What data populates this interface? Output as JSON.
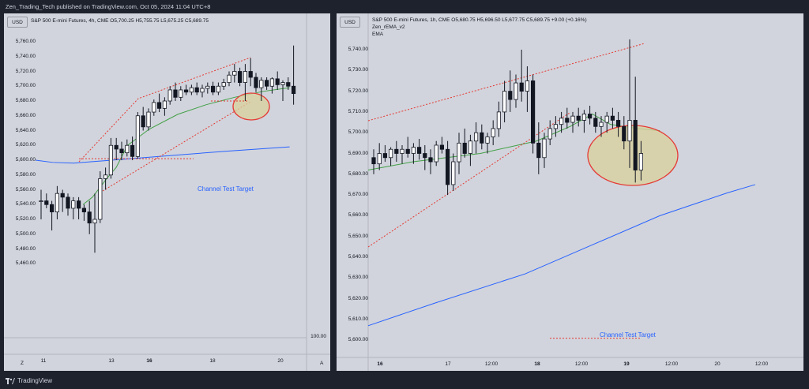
{
  "header": {
    "text": "Zen_Trading_Tech published on TradingView.com, Oct 05, 2024 11:04 UTC+8"
  },
  "footer": {
    "brand": "TradingView",
    "logo_icon": "tradingview-logo-icon"
  },
  "colors": {
    "bull": "#ffffff",
    "bear": "#131722",
    "ema_blue": "#2962ff",
    "ema_green": "#43a047",
    "ema_orange": "#ff9800",
    "trend": "#e53935",
    "highlight_fill": "#d9d29c",
    "highlight_stroke": "#e53935"
  },
  "panels": [
    {
      "currency": "USD",
      "legend": [
        "S&P 500 E-mini Futures, 4h, CME  O5,700.25  H5,755.75  L5,675.25  C5,689.75"
      ],
      "y_ticks": [
        "5,760.00",
        "5,740.00",
        "5,720.00",
        "5,700.00",
        "5,680.00",
        "5,660.00",
        "5,640.00",
        "5,620.00",
        "5,600.00",
        "5,580.00",
        "5,560.00",
        "5,540.00",
        "5,520.00",
        "5,500.00",
        "5,480.00",
        "5,460.00"
      ],
      "volume_tick": "100.00",
      "x_ticks": [
        "11",
        "13",
        "16",
        "18",
        "20"
      ],
      "x_bold": [
        "16"
      ],
      "corner_left": "Z",
      "corner_right": "A",
      "annotation": "Channel Test Target"
    },
    {
      "currency": "USD",
      "legend": [
        "S&P 500 E-mini Futures, 1h, CME  O5,680.75  H5,696.50  L5,677.75  C5,689.75  +9.00 (+0.16%)",
        "Zen_rEMA_v2",
        "EMA"
      ],
      "y_ticks": [
        "5,740.00",
        "5,730.00",
        "5,720.00",
        "5,710.00",
        "5,700.00",
        "5,690.00",
        "5,680.00",
        "5,670.00",
        "5,660.00",
        "5,650.00",
        "5,640.00",
        "5,630.00",
        "5,620.00",
        "5,610.00",
        "5,600.00"
      ],
      "x_ticks": [
        "16",
        "17",
        "12:00",
        "18",
        "12:00",
        "19",
        "12:00",
        "20",
        "12:00"
      ],
      "x_bold": [
        "16",
        "18",
        "19"
      ],
      "annotation": "Channel Test Target"
    }
  ],
  "chart_data": [
    {
      "type": "candlestick",
      "title": "S&P 500 E-mini Futures, 4h, CME",
      "ylim": [
        5450,
        5770
      ],
      "ohlc": [
        [
          5545,
          5560,
          5520,
          5545
        ],
        [
          5545,
          5555,
          5535,
          5540
        ],
        [
          5540,
          5545,
          5505,
          5530
        ],
        [
          5530,
          5565,
          5520,
          5555
        ],
        [
          5555,
          5560,
          5530,
          5550
        ],
        [
          5550,
          5555,
          5525,
          5535
        ],
        [
          5535,
          5550,
          5520,
          5545
        ],
        [
          5545,
          5550,
          5520,
          5535
        ],
        [
          5535,
          5540,
          5518,
          5530
        ],
        [
          5530,
          5545,
          5500,
          5515
        ],
        [
          5515,
          5555,
          5475,
          5520
        ],
        [
          5520,
          5585,
          5515,
          5575
        ],
        [
          5575,
          5590,
          5560,
          5580
        ],
        [
          5580,
          5630,
          5575,
          5620
        ],
        [
          5620,
          5630,
          5600,
          5615
        ],
        [
          5615,
          5625,
          5600,
          5610
        ],
        [
          5610,
          5628,
          5605,
          5620
        ],
        [
          5620,
          5632,
          5600,
          5605
        ],
        [
          5605,
          5665,
          5602,
          5660
        ],
        [
          5660,
          5672,
          5640,
          5645
        ],
        [
          5645,
          5670,
          5640,
          5665
        ],
        [
          5665,
          5682,
          5660,
          5678
        ],
        [
          5678,
          5690,
          5665,
          5670
        ],
        [
          5670,
          5685,
          5660,
          5680
        ],
        [
          5680,
          5700,
          5675,
          5695
        ],
        [
          5695,
          5705,
          5680,
          5685
        ],
        [
          5685,
          5700,
          5680,
          5695
        ],
        [
          5695,
          5702,
          5688,
          5692
        ],
        [
          5692,
          5702,
          5688,
          5698
        ],
        [
          5698,
          5705,
          5688,
          5692
        ],
        [
          5692,
          5702,
          5685,
          5697
        ],
        [
          5697,
          5705,
          5690,
          5700
        ],
        [
          5700,
          5706,
          5688,
          5692
        ],
        [
          5692,
          5705,
          5688,
          5700
        ],
        [
          5700,
          5710,
          5695,
          5705
        ],
        [
          5705,
          5720,
          5700,
          5715
        ],
        [
          5715,
          5730,
          5705,
          5720
        ],
        [
          5720,
          5725,
          5700,
          5705
        ],
        [
          5705,
          5730,
          5680,
          5720
        ],
        [
          5720,
          5738,
          5700,
          5712
        ],
        [
          5712,
          5718,
          5692,
          5698
        ],
        [
          5698,
          5712,
          5680,
          5708
        ],
        [
          5708,
          5712,
          5695,
          5700
        ],
        [
          5700,
          5712,
          5690,
          5710
        ],
        [
          5710,
          5720,
          5695,
          5702
        ],
        [
          5702,
          5708,
          5680,
          5705
        ],
        [
          5705,
          5712,
          5695,
          5700
        ],
        [
          5700,
          5755,
          5675,
          5690
        ]
      ],
      "ema_blue": [
        [
          0,
          5600
        ],
        [
          18,
          5597
        ],
        [
          40,
          5596
        ],
        [
          80,
          5600
        ],
        [
          140,
          5606
        ],
        [
          200,
          5612
        ],
        [
          268,
          5618
        ]
      ],
      "ema_green": [
        [
          50,
          5540
        ],
        [
          60,
          5550
        ],
        [
          75,
          5575
        ],
        [
          85,
          5590
        ],
        [
          97,
          5620
        ],
        [
          120,
          5642
        ],
        [
          150,
          5662
        ],
        [
          180,
          5675
        ],
        [
          210,
          5685
        ],
        [
          240,
          5693
        ],
        [
          268,
          5698
        ]
      ],
      "target_level": 5602
    },
    {
      "type": "candlestick",
      "title": "S&P 500 E-mini Futures, 1h, CME",
      "ylim": [
        5595,
        5745
      ],
      "ohlc": [
        [
          5688,
          5692,
          5680,
          5685
        ],
        [
          5685,
          5695,
          5682,
          5690
        ],
        [
          5690,
          5694,
          5686,
          5688
        ],
        [
          5688,
          5693,
          5684,
          5692
        ],
        [
          5692,
          5696,
          5686,
          5690
        ],
        [
          5690,
          5694,
          5685,
          5692
        ],
        [
          5692,
          5698,
          5688,
          5690
        ],
        [
          5690,
          5695,
          5685,
          5693
        ],
        [
          5693,
          5697,
          5687,
          5690
        ],
        [
          5690,
          5694,
          5682,
          5688
        ],
        [
          5688,
          5692,
          5680,
          5686
        ],
        [
          5686,
          5696,
          5684,
          5694
        ],
        [
          5694,
          5698,
          5690,
          5692
        ],
        [
          5692,
          5696,
          5670,
          5675
        ],
        [
          5675,
          5690,
          5672,
          5686
        ],
        [
          5686,
          5700,
          5680,
          5695
        ],
        [
          5695,
          5702,
          5688,
          5690
        ],
        [
          5690,
          5699,
          5684,
          5696
        ],
        [
          5696,
          5705,
          5690,
          5700
        ],
        [
          5700,
          5704,
          5692,
          5695
        ],
        [
          5695,
          5700,
          5690,
          5698
        ],
        [
          5698,
          5706,
          5694,
          5702
        ],
        [
          5702,
          5715,
          5698,
          5710
        ],
        [
          5710,
          5725,
          5705,
          5720
        ],
        [
          5720,
          5730,
          5710,
          5716
        ],
        [
          5716,
          5728,
          5712,
          5724
        ],
        [
          5724,
          5740,
          5715,
          5720
        ],
        [
          5720,
          5732,
          5710,
          5725
        ],
        [
          5725,
          5728,
          5690,
          5695
        ],
        [
          5695,
          5705,
          5680,
          5688
        ],
        [
          5688,
          5700,
          5683,
          5697
        ],
        [
          5697,
          5706,
          5694,
          5702
        ],
        [
          5702,
          5708,
          5698,
          5704
        ],
        [
          5704,
          5710,
          5700,
          5707
        ],
        [
          5707,
          5712,
          5702,
          5705
        ],
        [
          5705,
          5710,
          5700,
          5708
        ],
        [
          5708,
          5712,
          5703,
          5706
        ],
        [
          5706,
          5711,
          5700,
          5709
        ],
        [
          5709,
          5713,
          5704,
          5707
        ],
        [
          5707,
          5710,
          5700,
          5703
        ],
        [
          5703,
          5708,
          5698,
          5705
        ],
        [
          5705,
          5710,
          5700,
          5708
        ],
        [
          5708,
          5712,
          5702,
          5706
        ],
        [
          5706,
          5710,
          5698,
          5703
        ],
        [
          5703,
          5708,
          5692,
          5696
        ],
        [
          5696,
          5745,
          5683,
          5706
        ],
        [
          5706,
          5727,
          5676,
          5682
        ],
        [
          5682,
          5696,
          5677,
          5690
        ]
      ],
      "ema_blue": [
        [
          0,
          5607
        ],
        [
          60,
          5618
        ],
        [
          140,
          5632
        ],
        [
          200,
          5646
        ],
        [
          260,
          5660
        ],
        [
          320,
          5671
        ],
        [
          345,
          5675
        ]
      ],
      "ema_green": [
        [
          0,
          5682
        ],
        [
          40,
          5686
        ],
        [
          100,
          5690
        ],
        [
          150,
          5696
        ],
        [
          180,
          5703
        ],
        [
          200,
          5709
        ],
        [
          216,
          5704
        ],
        [
          240,
          5702
        ],
        [
          260,
          5701
        ]
      ],
      "target_level": 5601
    }
  ]
}
